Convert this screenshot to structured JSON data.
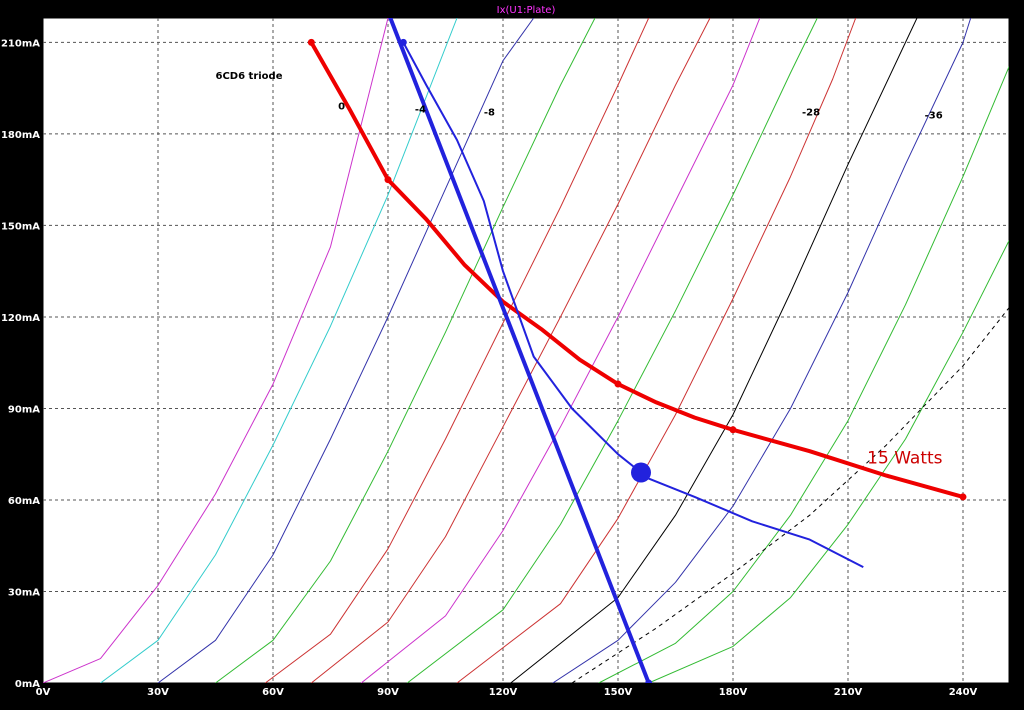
{
  "window_title": "Ix(U1:Plate)",
  "chart_data": {
    "type": "line",
    "title": "",
    "xlabel": "",
    "ylabel": "",
    "xlim": [
      0,
      252
    ],
    "ylim": [
      0,
      218
    ],
    "x_ticks": [
      0,
      30,
      60,
      90,
      120,
      150,
      180,
      210,
      240
    ],
    "x_tick_labels": [
      "0V",
      "30V",
      "60V",
      "90V",
      "120V",
      "150V",
      "180V",
      "210V",
      "240V"
    ],
    "y_ticks": [
      0,
      30,
      60,
      90,
      120,
      150,
      180,
      210
    ],
    "y_tick_labels": [
      "0mA",
      "30mA",
      "60mA",
      "90mA",
      "120mA",
      "150mA",
      "180mA",
      "210mA"
    ],
    "grid": true,
    "annotations": [
      {
        "text": "6CD6 triode",
        "x": 45,
        "y": 198,
        "color": "#000000"
      },
      {
        "text": "0",
        "x": 77,
        "y": 188,
        "color": "#000000"
      },
      {
        "text": "-4",
        "x": 97,
        "y": 187,
        "color": "#000000"
      },
      {
        "text": "-8",
        "x": 115,
        "y": 186,
        "color": "#000000"
      },
      {
        "text": "-28",
        "x": 198,
        "y": 186,
        "color": "#3333cc"
      },
      {
        "text": "-36",
        "x": 230,
        "y": 185,
        "color": "#000000"
      }
    ],
    "series": [
      {
        "color": "#cc33cc",
        "points": [
          [
            0,
            0
          ],
          [
            15,
            8
          ],
          [
            30,
            32
          ],
          [
            45,
            62
          ],
          [
            60,
            98
          ],
          [
            75,
            143
          ],
          [
            90,
            218
          ]
        ]
      },
      {
        "color": "#33cccc",
        "points": [
          [
            15,
            0
          ],
          [
            30,
            14
          ],
          [
            45,
            42
          ],
          [
            60,
            78
          ],
          [
            75,
            117
          ],
          [
            90,
            160
          ],
          [
            108,
            218
          ]
        ]
      },
      {
        "color": "#3333aa",
        "points": [
          [
            30,
            0
          ],
          [
            45,
            14
          ],
          [
            60,
            42
          ],
          [
            75,
            80
          ],
          [
            90,
            120
          ],
          [
            105,
            162
          ],
          [
            120,
            204
          ],
          [
            128,
            218
          ]
        ]
      },
      {
        "color": "#33bb33",
        "points": [
          [
            45,
            0
          ],
          [
            60,
            14
          ],
          [
            75,
            40
          ],
          [
            90,
            76
          ],
          [
            105,
            115
          ],
          [
            120,
            156
          ],
          [
            135,
            196
          ],
          [
            144,
            218
          ]
        ]
      },
      {
        "color": "#cc3333",
        "points": [
          [
            58,
            0
          ],
          [
            75,
            16
          ],
          [
            90,
            44
          ],
          [
            105,
            80
          ],
          [
            120,
            118
          ],
          [
            135,
            156
          ],
          [
            150,
            196
          ],
          [
            158,
            218
          ]
        ]
      },
      {
        "color": "#cc3333",
        "points": [
          [
            70,
            0
          ],
          [
            90,
            20
          ],
          [
            105,
            48
          ],
          [
            120,
            84
          ],
          [
            135,
            120
          ],
          [
            150,
            157
          ],
          [
            165,
            196
          ],
          [
            174,
            218
          ]
        ]
      },
      {
        "color": "#cc33cc",
        "points": [
          [
            83,
            0
          ],
          [
            105,
            22
          ],
          [
            120,
            50
          ],
          [
            135,
            84
          ],
          [
            150,
            120
          ],
          [
            165,
            158
          ],
          [
            180,
            196
          ],
          [
            187,
            218
          ]
        ]
      },
      {
        "color": "#33bb33",
        "points": [
          [
            95,
            0
          ],
          [
            120,
            24
          ],
          [
            135,
            52
          ],
          [
            150,
            86
          ],
          [
            165,
            122
          ],
          [
            180,
            160
          ],
          [
            195,
            200
          ],
          [
            202,
            218
          ]
        ]
      },
      {
        "color": "#cc3333",
        "points": [
          [
            108,
            0
          ],
          [
            135,
            26
          ],
          [
            150,
            54
          ],
          [
            165,
            88
          ],
          [
            180,
            126
          ],
          [
            195,
            166
          ],
          [
            206,
            198
          ],
          [
            212,
            218
          ]
        ]
      },
      {
        "color": "#000000",
        "points": [
          [
            122,
            0
          ],
          [
            150,
            28
          ],
          [
            165,
            55
          ],
          [
            180,
            88
          ],
          [
            195,
            128
          ],
          [
            210,
            170
          ],
          [
            225,
            210
          ],
          [
            228,
            218
          ]
        ]
      },
      {
        "color": "#3333aa",
        "points": [
          [
            133,
            0
          ],
          [
            150,
            14
          ],
          [
            165,
            33
          ],
          [
            180,
            58
          ],
          [
            195,
            90
          ],
          [
            210,
            128
          ],
          [
            225,
            170
          ],
          [
            240,
            210
          ],
          [
            242,
            218
          ]
        ]
      },
      {
        "color": "#33bb33",
        "points": [
          [
            145,
            0
          ],
          [
            165,
            13
          ],
          [
            180,
            30
          ],
          [
            195,
            55
          ],
          [
            210,
            86
          ],
          [
            225,
            124
          ],
          [
            240,
            166
          ],
          [
            252,
            202
          ]
        ]
      },
      {
        "color": "#33bb33",
        "points": [
          [
            158,
            0
          ],
          [
            180,
            12
          ],
          [
            195,
            28
          ],
          [
            210,
            52
          ],
          [
            225,
            80
          ],
          [
            240,
            115
          ],
          [
            252,
            145
          ]
        ]
      },
      {
        "color": "#000000",
        "dash": true,
        "points": [
          [
            138,
            0
          ],
          [
            160,
            18
          ],
          [
            180,
            36
          ],
          [
            200,
            55
          ],
          [
            220,
            78
          ],
          [
            240,
            104
          ],
          [
            252,
            123
          ]
        ]
      },
      {
        "color": "#ee0000",
        "width": 4,
        "markers": [
          [
            70,
            210
          ],
          [
            90,
            165
          ],
          [
            150,
            98
          ],
          [
            180,
            83
          ],
          [
            240,
            61
          ]
        ],
        "points": [
          [
            70,
            210
          ],
          [
            80,
            188
          ],
          [
            90,
            165
          ],
          [
            100,
            152
          ],
          [
            110,
            137
          ],
          [
            120,
            125
          ],
          [
            130,
            116
          ],
          [
            140,
            106
          ],
          [
            150,
            98
          ],
          [
            160,
            92
          ],
          [
            170,
            87
          ],
          [
            180,
            83
          ],
          [
            200,
            76
          ],
          [
            220,
            68
          ],
          [
            240,
            61
          ]
        ]
      },
      {
        "color": "#2222dd",
        "width": 4,
        "markers": [
          [
            94,
            210
          ],
          [
            158,
            0
          ]
        ],
        "points": [
          [
            90,
            220
          ],
          [
            158,
            0
          ]
        ]
      },
      {
        "color": "#2222dd",
        "width": 2,
        "points": [
          [
            94,
            210
          ],
          [
            100,
            196
          ],
          [
            108,
            178
          ],
          [
            115,
            158
          ],
          [
            120,
            135
          ],
          [
            128,
            107
          ],
          [
            138,
            90
          ],
          [
            150,
            75
          ],
          [
            158,
            67
          ],
          [
            170,
            61
          ],
          [
            185,
            53
          ],
          [
            200,
            47
          ],
          [
            214,
            38
          ]
        ]
      }
    ],
    "operating_point": {
      "x": 156,
      "y": 69,
      "color": "#2222dd"
    },
    "callout": {
      "text": "15 Watts",
      "x": 215,
      "y": 72,
      "color": "#cc0000"
    }
  }
}
